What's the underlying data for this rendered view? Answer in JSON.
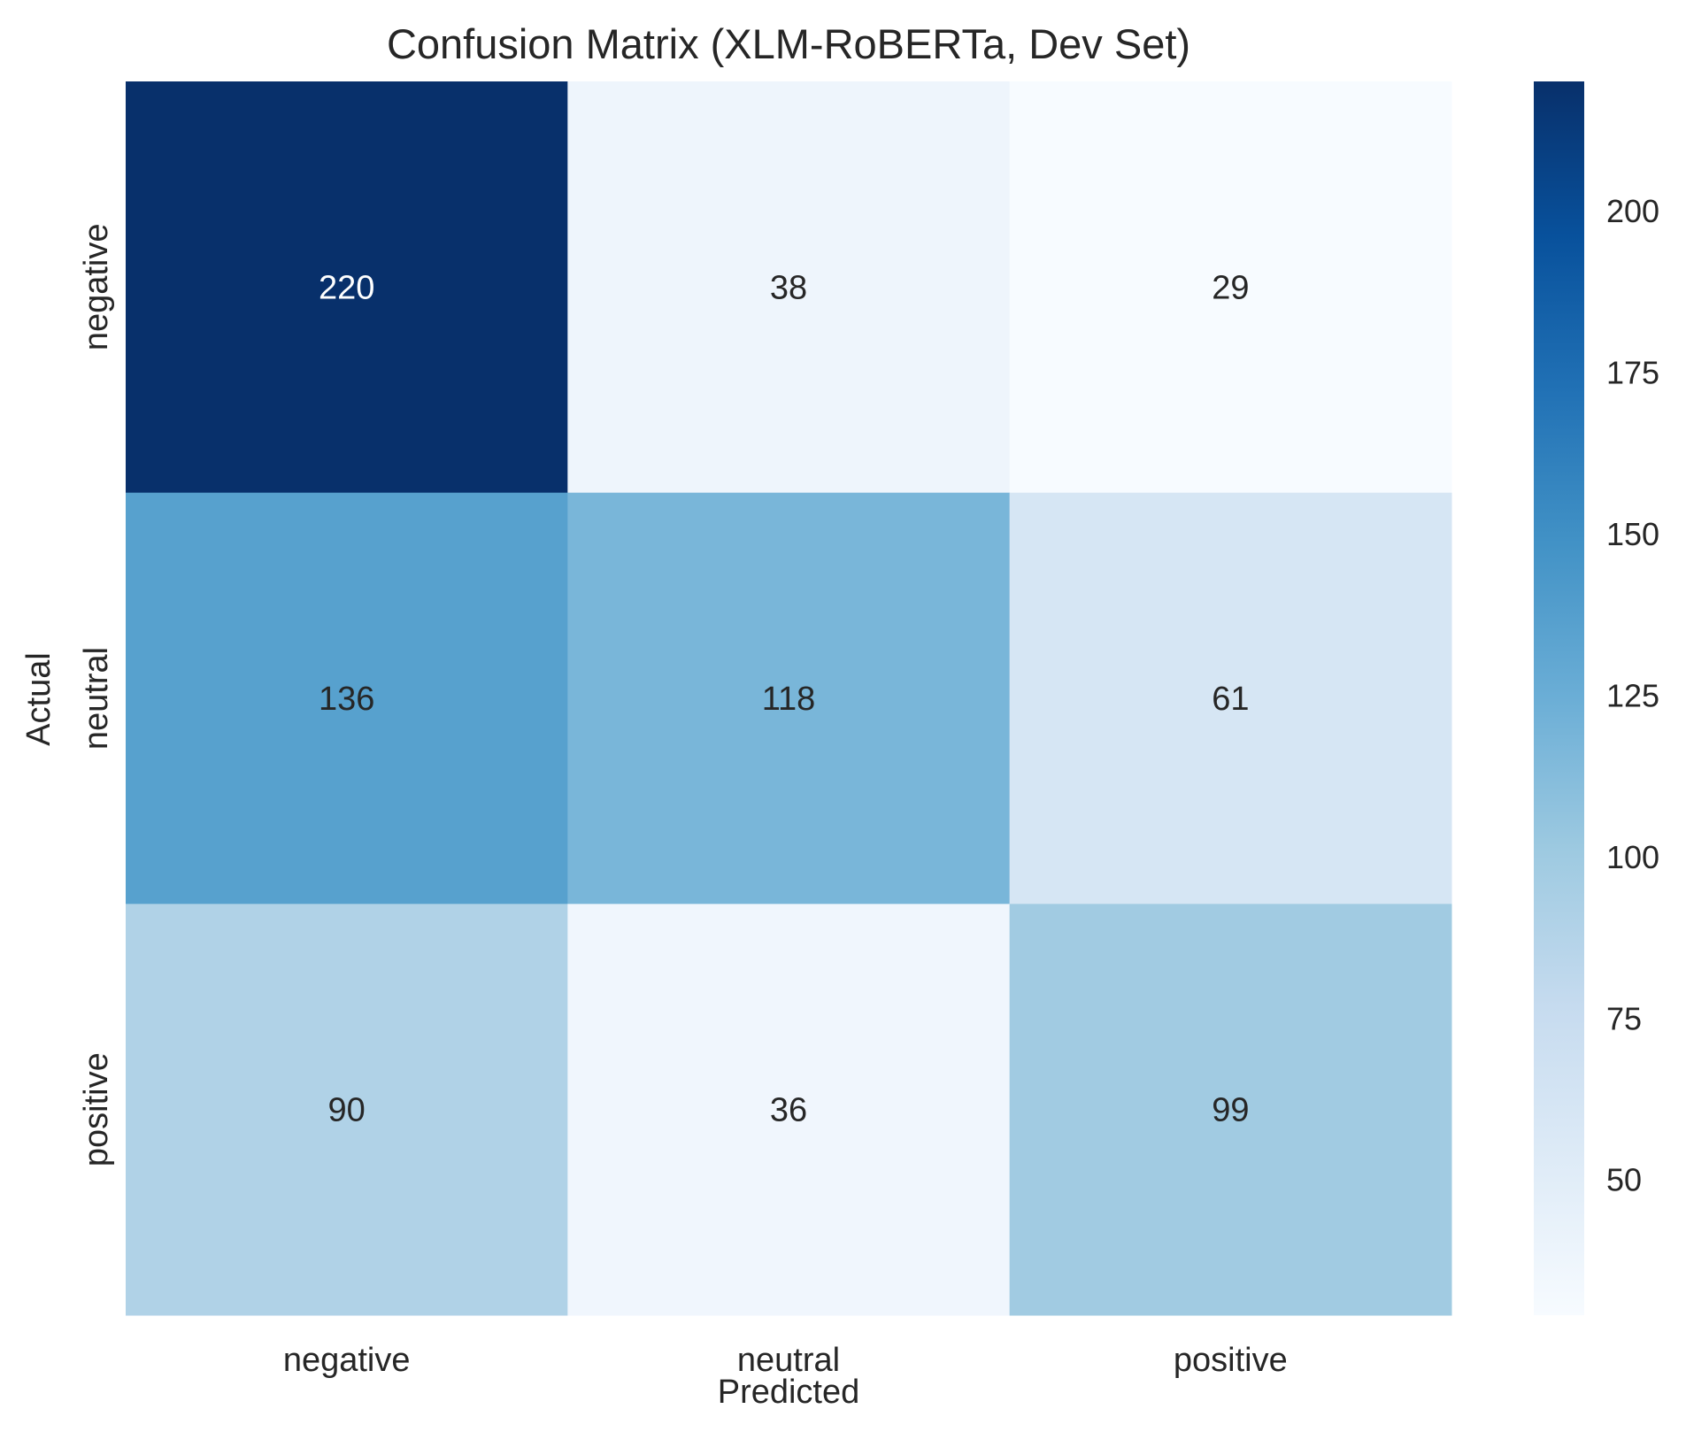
{
  "chart_data": {
    "type": "heatmap",
    "title": "Confusion Matrix (XLM-RoBERTa, Dev Set)",
    "xlabel": "Predicted",
    "ylabel": "Actual",
    "x_categories": [
      "negative",
      "neutral",
      "positive"
    ],
    "y_categories": [
      "negative",
      "neutral",
      "positive"
    ],
    "values": [
      [
        220,
        38,
        29
      ],
      [
        136,
        118,
        61
      ],
      [
        90,
        36,
        99
      ]
    ],
    "colormap": "Blues",
    "color_range": [
      29,
      220
    ],
    "colorbar_ticks": [
      50,
      75,
      100,
      125,
      150,
      175,
      200
    ],
    "grid": false,
    "legend": "colorbar-right"
  }
}
